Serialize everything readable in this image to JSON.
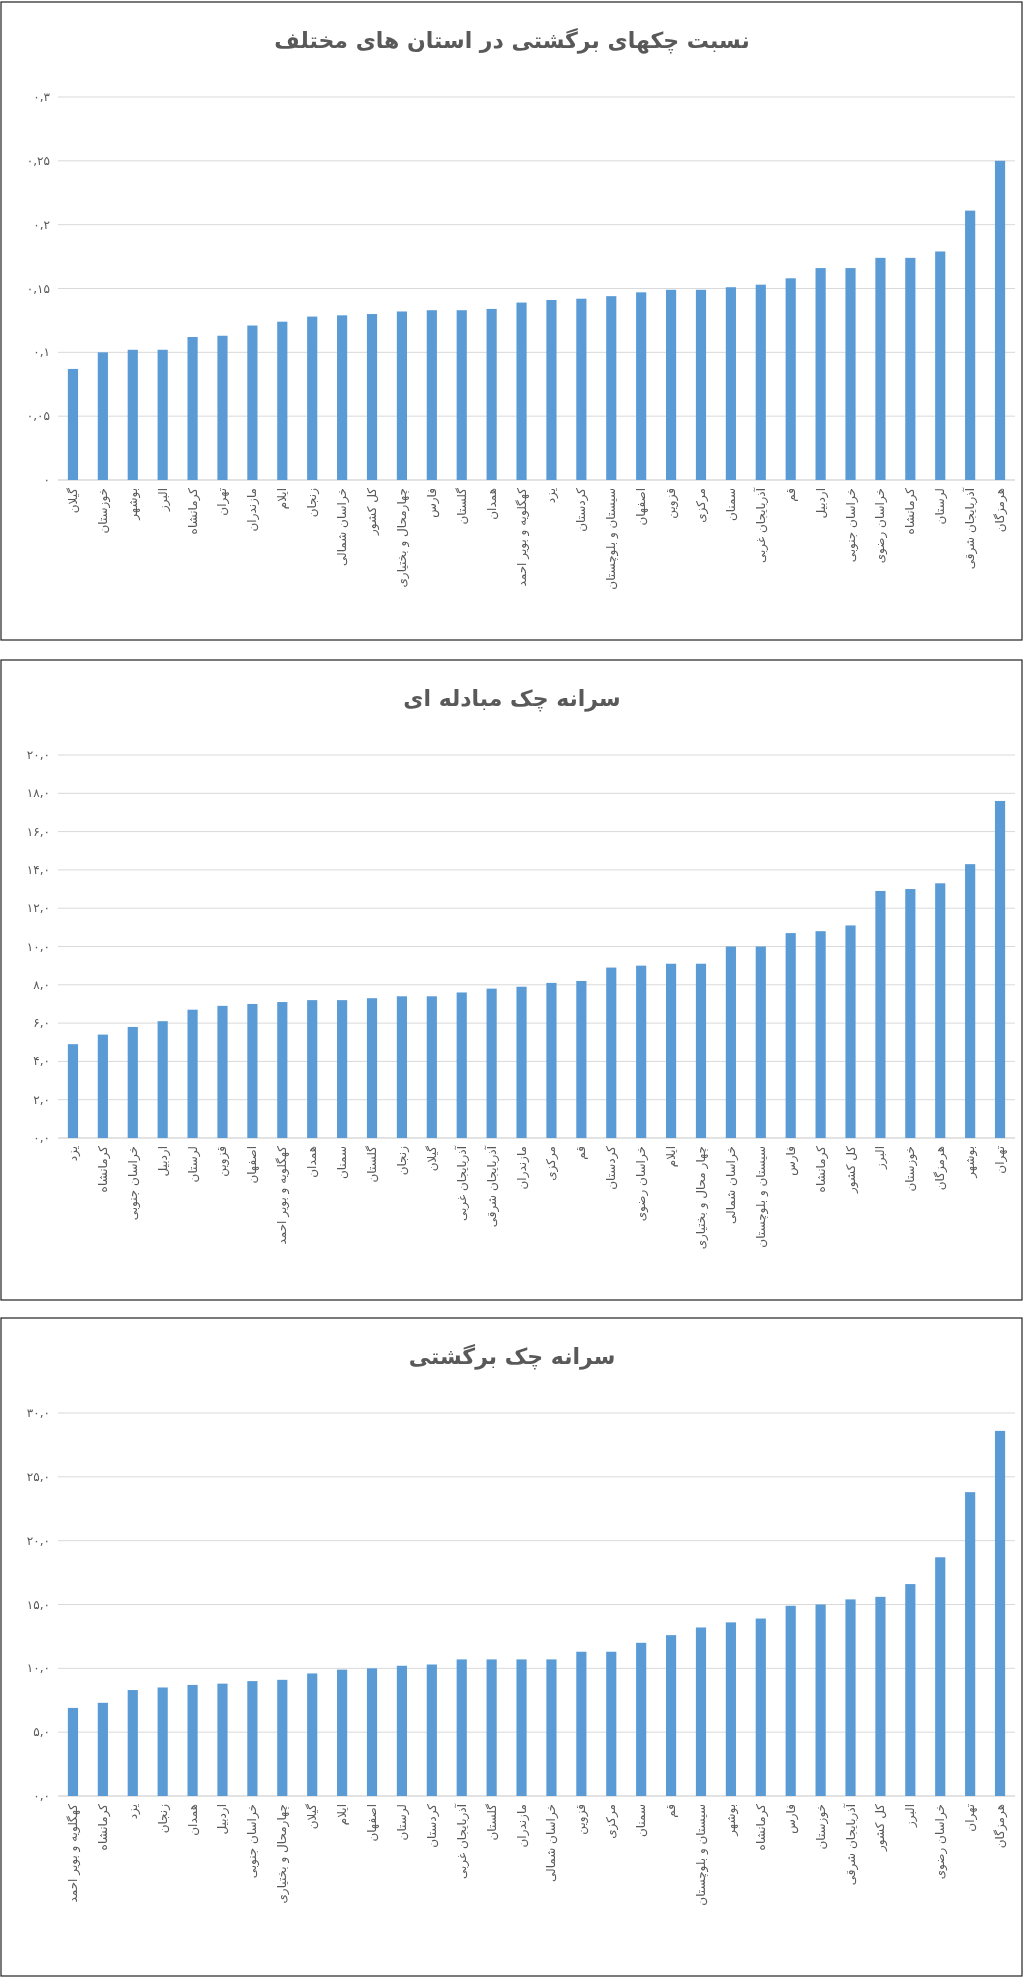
{
  "chart_data": [
    {
      "type": "bar",
      "title": "نسبت چکهای برگشتی در استان های مختلف",
      "color": "#5b9bd5",
      "grid": "y",
      "ylim": [
        0,
        0.3
      ],
      "yticks": [
        {
          "value": 0,
          "label": "۰"
        },
        {
          "value": 0.05,
          "label": "۰,۰۵"
        },
        {
          "value": 0.1,
          "label": "۰,۱"
        },
        {
          "value": 0.15,
          "label": "۰,۱۵"
        },
        {
          "value": 0.2,
          "label": "۰,۲"
        },
        {
          "value": 0.25,
          "label": "۰,۲۵"
        },
        {
          "value": 0.3,
          "label": "۰,۳"
        }
      ],
      "categories": [
        "گیلان",
        "خوزستان",
        "بوشهر",
        "البرز",
        "کرمانشاه",
        "تهران",
        "مازندران",
        "ایلام",
        "زنجان",
        "خراسان شمالی",
        "کل کشور",
        "چهارمحال و بختیاری",
        "فارس",
        "گلستان",
        "همدان",
        "کهگلویه و بویر احمد",
        "یزد",
        "کردستان",
        "سیستان و بلوچستان",
        "اصفهان",
        "قزوین",
        "مرکزی",
        "سمنان",
        "آذربایجان غربی",
        "قم",
        "اردبیل",
        "خراسان جنوبی",
        "خراسان رضوی",
        "کرمانشاه",
        "لرستان",
        "آذربایجان شرقی",
        "هرمزگان"
      ],
      "values": [
        0.087,
        0.1,
        0.102,
        0.102,
        0.112,
        0.113,
        0.121,
        0.124,
        0.128,
        0.129,
        0.13,
        0.132,
        0.133,
        0.133,
        0.134,
        0.139,
        0.141,
        0.142,
        0.144,
        0.147,
        0.149,
        0.149,
        0.151,
        0.153,
        0.158,
        0.166,
        0.166,
        0.174,
        0.174,
        0.179,
        0.211,
        0.25
      ]
    },
    {
      "type": "bar",
      "title": "سرانه چک مبادله ای",
      "color": "#5b9bd5",
      "grid": "y",
      "ylim": [
        0,
        20
      ],
      "yticks": [
        {
          "value": 0,
          "label": "۰,۰"
        },
        {
          "value": 2,
          "label": "۲,۰"
        },
        {
          "value": 4,
          "label": "۴,۰"
        },
        {
          "value": 6,
          "label": "۶,۰"
        },
        {
          "value": 8,
          "label": "۸,۰"
        },
        {
          "value": 10,
          "label": "۱۰,۰"
        },
        {
          "value": 12,
          "label": "۱۲,۰"
        },
        {
          "value": 14,
          "label": "۱۴,۰"
        },
        {
          "value": 16,
          "label": "۱۶,۰"
        },
        {
          "value": 18,
          "label": "۱۸,۰"
        },
        {
          "value": 20,
          "label": "۲۰,۰"
        }
      ],
      "categories": [
        "یزد",
        "کرمانشاه",
        "خراسان جنوبی",
        "اردبیل",
        "لرستان",
        "قزوین",
        "اصفهان",
        "کهگلویه و بویر احمد",
        "همدان",
        "سمنان",
        "گلستان",
        "زنجان",
        "گیلان",
        "آذربایجان غربی",
        "آذربایجان شرقی",
        "مازندران",
        "مرکزی",
        "قم",
        "کردستان",
        "خراسان رضوی",
        "ایلام",
        "چهار محال و بختیاری",
        "خراسان شمالی",
        "سیستان و بلوچستان",
        "فارس",
        "کرمانشاه",
        "کل کشور",
        "البرز",
        "خوزستان",
        "هرمزگان",
        "بوشهر",
        "تهران"
      ],
      "values": [
        4.9,
        5.4,
        5.8,
        6.1,
        6.7,
        6.9,
        7.0,
        7.1,
        7.2,
        7.2,
        7.3,
        7.4,
        7.4,
        7.6,
        7.8,
        7.9,
        8.1,
        8.2,
        8.9,
        9.0,
        9.1,
        9.1,
        10.0,
        10.0,
        10.7,
        10.8,
        11.1,
        12.9,
        13.0,
        13.3,
        14.3,
        17.6
      ]
    },
    {
      "type": "bar",
      "title": "سرانه چک برگشتی",
      "color": "#5b9bd5",
      "grid": "y",
      "ylim": [
        0,
        30
      ],
      "yticks": [
        {
          "value": 0,
          "label": "۰,۰"
        },
        {
          "value": 5,
          "label": "۵,۰"
        },
        {
          "value": 10,
          "label": "۱۰,۰"
        },
        {
          "value": 15,
          "label": "۱۵,۰"
        },
        {
          "value": 20,
          "label": "۲۰,۰"
        },
        {
          "value": 25,
          "label": "۲۵,۰"
        },
        {
          "value": 30,
          "label": "۳۰,۰"
        }
      ],
      "categories": [
        "کهگلویه و بویر احمد",
        "کرمانشاه",
        "یزد",
        "زنجان",
        "همدان",
        "اردبیل",
        "خراسان جنوبی",
        "چهارمحال و بختیاری",
        "گیلان",
        "ایلام",
        "اصفهان",
        "لرستان",
        "کردستان",
        "آذربایجان غربی",
        "گلستان",
        "مازندران",
        "خراسان شمالی",
        "قزوین",
        "مرکزی",
        "سمنان",
        "قم",
        "سیستان و بلوچستان",
        "بوشهر",
        "کرمانشاه",
        "فارس",
        "خوزستان",
        "آذربایجان شرقی",
        "کل کشور",
        "البرز",
        "خراسان رضوی",
        "تهران",
        "هرمزگان"
      ],
      "values": [
        6.9,
        7.3,
        8.3,
        8.5,
        8.7,
        8.8,
        9.0,
        9.1,
        9.6,
        9.9,
        10.0,
        10.2,
        10.3,
        10.7,
        10.7,
        10.7,
        10.7,
        11.3,
        11.3,
        12.0,
        12.6,
        13.2,
        13.6,
        13.9,
        14.9,
        15.0,
        15.4,
        15.6,
        16.6,
        18.7,
        23.8,
        28.6
      ]
    }
  ]
}
